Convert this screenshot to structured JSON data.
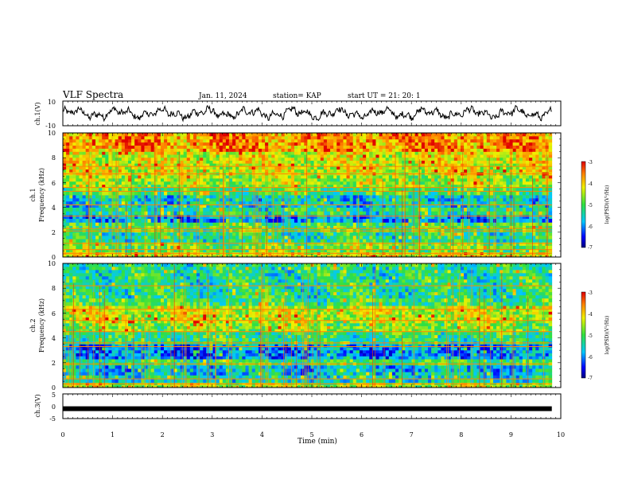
{
  "header": {
    "title": "VLF Spectra",
    "date": "Jan. 11, 2024",
    "station": "station= KAP",
    "start": "start  UT =   21: 20: 1"
  },
  "chart_data": [
    {
      "type": "line",
      "ylabel": "ch.1(V)",
      "ylim": [
        -10,
        10
      ],
      "ytick_labels": [
        "10",
        "-10"
      ],
      "xlim": [
        0,
        10
      ],
      "x_range_with_data": [
        0,
        9.82
      ],
      "description_values": {
        "typical_min": -6,
        "typical_max": 7
      }
    },
    {
      "type": "heatmap",
      "ylabel": "Frequency  (kHz)",
      "panel_label": "ch.1",
      "ylim": [
        0,
        10
      ],
      "ytick_labels": [
        "0",
        "2",
        "4",
        "6",
        "8",
        "10"
      ],
      "xlim": [
        0,
        10
      ],
      "x_range_with_data": [
        0,
        9.82
      ],
      "bands": [
        {
          "f0": 0.0,
          "f1": 0.4,
          "value": -4.2
        },
        {
          "f0": 0.4,
          "f1": 1.2,
          "value": -4.8
        },
        {
          "f0": 1.2,
          "f1": 2.0,
          "value": -5.3
        },
        {
          "f0": 2.0,
          "f1": 2.8,
          "value": -5.0
        },
        {
          "f0": 2.8,
          "f1": 3.4,
          "value": -5.9
        },
        {
          "f0": 3.4,
          "f1": 4.0,
          "value": -5.3
        },
        {
          "f0": 4.0,
          "f1": 5.0,
          "value": -5.6
        },
        {
          "f0": 5.0,
          "f1": 5.6,
          "value": -5.0
        },
        {
          "f0": 5.6,
          "f1": 6.6,
          "value": -4.6
        },
        {
          "f0": 6.6,
          "f1": 8.5,
          "value": -4.3
        },
        {
          "f0": 8.5,
          "f1": 10.0,
          "value": -3.7
        }
      ],
      "lines_khz": [
        0.3,
        0.6,
        1.1,
        2.1,
        2.3,
        3.3,
        4.2,
        5.3,
        5.6,
        6.7,
        7.3
      ],
      "colorbar": {
        "label": "log(PSD)(V²/Hz)",
        "range": [
          -7,
          -3
        ],
        "tick_labels": [
          "-3",
          "-4",
          "-5",
          "-6",
          "-7"
        ]
      }
    },
    {
      "type": "heatmap",
      "ylabel": "Frequency  (kHz)",
      "panel_label": "ch.2",
      "ylim": [
        0,
        10
      ],
      "ytick_labels": [
        "0",
        "2",
        "4",
        "6",
        "8",
        "10"
      ],
      "xlim": [
        0,
        10
      ],
      "x_range_with_data": [
        0,
        9.82
      ],
      "bands": [
        {
          "f0": 0.0,
          "f1": 0.4,
          "value": -4.5
        },
        {
          "f0": 0.4,
          "f1": 1.0,
          "value": -5.5
        },
        {
          "f0": 1.0,
          "f1": 1.8,
          "value": -5.7
        },
        {
          "f0": 1.8,
          "f1": 2.3,
          "value": -5.1
        },
        {
          "f0": 2.3,
          "f1": 3.5,
          "value": -6.0
        },
        {
          "f0": 3.5,
          "f1": 4.5,
          "value": -5.2
        },
        {
          "f0": 4.5,
          "f1": 5.2,
          "value": -4.7
        },
        {
          "f0": 5.2,
          "f1": 6.6,
          "value": -4.4
        },
        {
          "f0": 6.6,
          "f1": 7.2,
          "value": -5.1
        },
        {
          "f0": 7.2,
          "f1": 10.0,
          "value": -5.3
        }
      ],
      "lines_khz": [
        0.3,
        0.7,
        1.9,
        3.3,
        3.6,
        4.5,
        5.4,
        6.3,
        8.2
      ],
      "colorbar": {
        "label": "log(PSD)(V²/Hz)",
        "range": [
          -7,
          -3
        ],
        "tick_labels": [
          "-3",
          "-4",
          "-5",
          "-6",
          "-7"
        ]
      }
    },
    {
      "type": "line",
      "ylabel": "ch.3(V)",
      "ylim": [
        -5,
        5
      ],
      "ytick_labels": [
        "5",
        "0",
        "-5"
      ],
      "xlim": [
        0,
        10
      ],
      "x_range_with_data": [
        0,
        9.82
      ],
      "constant_value": -1,
      "xlabel": "Time  (min)",
      "xtick_labels": [
        "0",
        "1",
        "2",
        "3",
        "4",
        "5",
        "6",
        "7",
        "8",
        "9",
        "10"
      ]
    }
  ]
}
